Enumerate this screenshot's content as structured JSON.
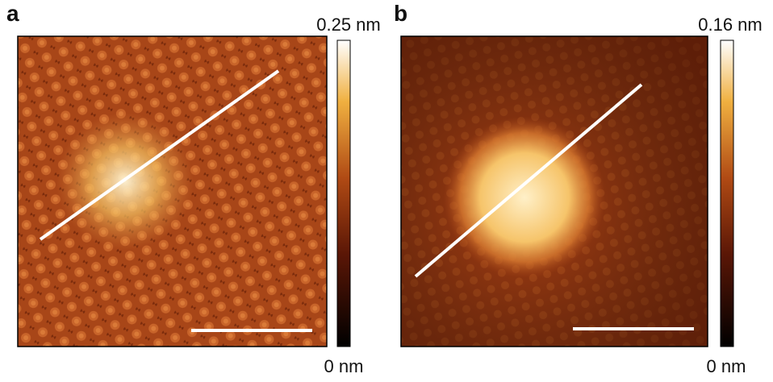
{
  "panels": [
    {
      "label": "a",
      "colorbar": {
        "max": "0.25 nm",
        "min": "0 nm"
      }
    },
    {
      "label": "b",
      "colorbar": {
        "max": "0.16 nm",
        "min": "0 nm"
      }
    }
  ]
}
